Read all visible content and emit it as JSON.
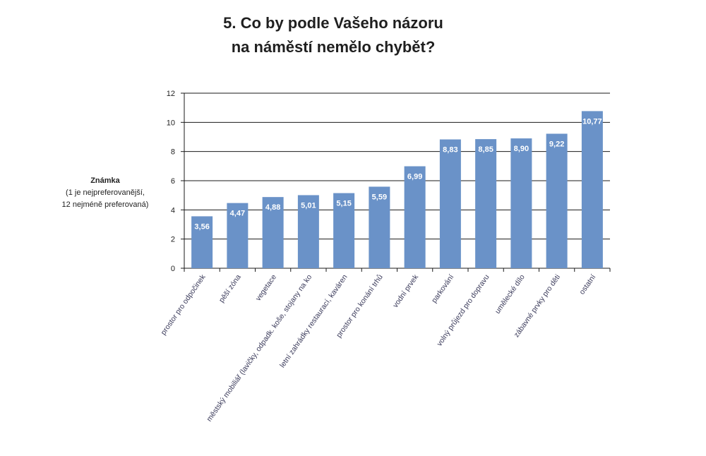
{
  "chart_data": {
    "type": "bar",
    "title_line1": "5. Co by podle Vašeho názoru",
    "title_line2": "na náměstí nemělo chybět?",
    "ylabel_bold": "Známka",
    "ylabel_line2": "(1 je nejpreferovanější,",
    "ylabel_line3": "12 nejméně preferovaná)",
    "categories": [
      "prostor pro odpočinek",
      "pěší zóna",
      "vegetace",
      "městský mobiliář (lavičky, odpadk. koše, stojany na ko",
      "letní zahrádky restaurací, kaváren",
      "prostor pro konání trhů",
      "vodní prvek",
      "parkování",
      "volný průjezd pro dopravu",
      "umělecké dílo",
      "zábavné prvky pro děti",
      "ostatní"
    ],
    "values": [
      3.56,
      4.47,
      4.88,
      5.01,
      5.15,
      5.59,
      6.99,
      8.83,
      8.85,
      8.9,
      9.22,
      10.77
    ],
    "value_labels": [
      "3,56",
      "4,47",
      "4,88",
      "5,01",
      "5,15",
      "5,59",
      "6,99",
      "8,83",
      "8,85",
      "8,90",
      "9,22",
      "10,77"
    ],
    "ylim": [
      0,
      12
    ],
    "yticks": [
      0,
      2,
      4,
      6,
      8,
      10,
      12
    ],
    "grid": true,
    "bar_color": "#6a92c8",
    "grid_color": "#1a1a1a"
  }
}
